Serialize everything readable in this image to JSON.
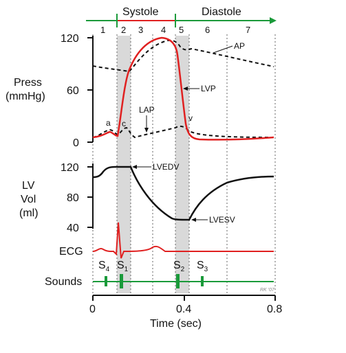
{
  "header": {
    "systole": "Systole",
    "diastole": "Diastole",
    "phases": [
      "1",
      "2",
      "3",
      "4",
      "5",
      "6",
      "7"
    ]
  },
  "pressure_panel": {
    "ylabel_line1": "Press",
    "ylabel_line2": "(mmHg)",
    "ticks": [
      "120",
      "60",
      "0"
    ],
    "labels": {
      "ap": "AP",
      "lvp": "LVP",
      "lap": "LAP",
      "a": "a",
      "c": "c",
      "v": "v"
    }
  },
  "volume_panel": {
    "ylabel_line1": "LV",
    "ylabel_line2": "Vol",
    "ylabel_line3": "(ml)",
    "ticks": [
      "120",
      "80",
      "40"
    ],
    "labels": {
      "lvedv": "LVEDV",
      "lvesv": "LVESV"
    }
  },
  "ecg_panel": {
    "label": "ECG"
  },
  "sounds_panel": {
    "label": "Sounds",
    "s4": "S",
    "s4_sub": "4",
    "s1": "S",
    "s1_sub": "1",
    "s2": "S",
    "s2_sub": "2",
    "s3": "S",
    "s3_sub": "3"
  },
  "x_axis": {
    "ticks": [
      "0",
      "0.4",
      "0.8"
    ],
    "label": "Time (sec)"
  },
  "credit": "RK '07",
  "colors": {
    "lvp": "#e02020",
    "ecg": "#e02020",
    "phase_bar": "#1a9a3a",
    "sounds": "#1a9a3a",
    "shade": "#d9d9d9",
    "systole_bar": "#e02020"
  }
}
